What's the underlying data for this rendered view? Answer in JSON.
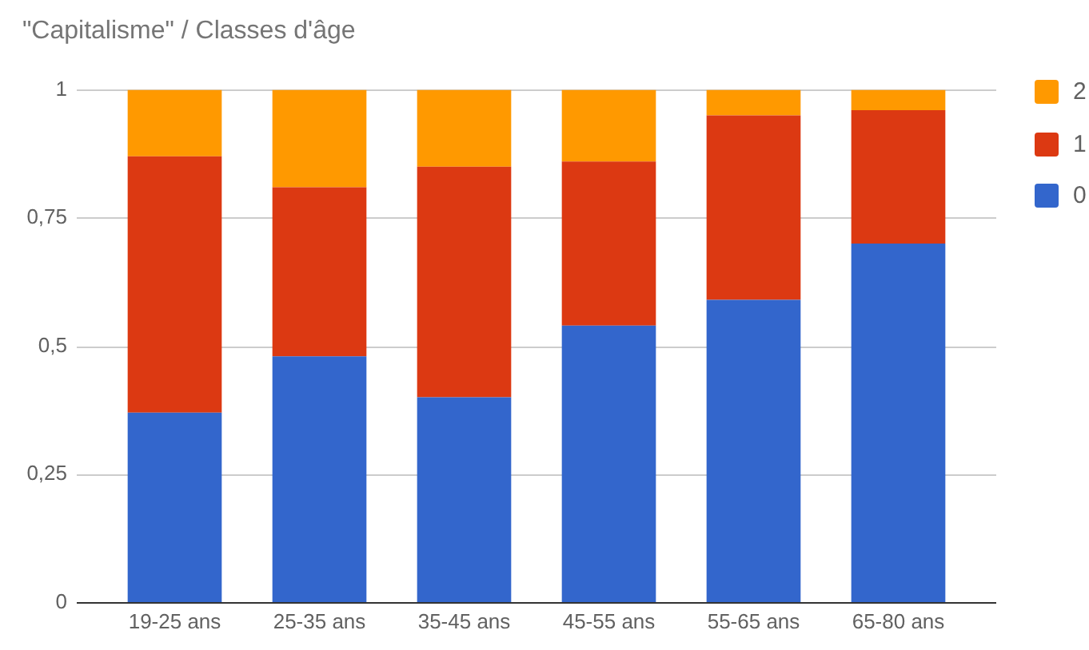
{
  "chart_data": {
    "type": "bar",
    "title": "\"Capitalisme\" / Classes d'âge",
    "categories": [
      "19-25 ans",
      "25-35 ans",
      "35-45 ans",
      "45-55 ans",
      "55-65 ans",
      "65-80 ans"
    ],
    "series": [
      {
        "name": "0",
        "color": "#3366cc",
        "values": [
          0.37,
          0.48,
          0.4,
          0.54,
          0.59,
          0.7
        ]
      },
      {
        "name": "1",
        "color": "#dc3912",
        "values": [
          0.5,
          0.33,
          0.45,
          0.32,
          0.36,
          0.26
        ]
      },
      {
        "name": "2",
        "color": "#ff9900",
        "values": [
          0.13,
          0.19,
          0.15,
          0.14,
          0.05,
          0.04
        ]
      }
    ],
    "stacked": true,
    "ylim": [
      0,
      1
    ],
    "yticks": [
      0,
      {
        "value": 0.25,
        "label": "0,25"
      },
      {
        "value": 0.5,
        "label": "0,5"
      },
      {
        "value": 0.75,
        "label": "0,75"
      },
      1
    ],
    "grid": "y",
    "legend": "top right"
  }
}
